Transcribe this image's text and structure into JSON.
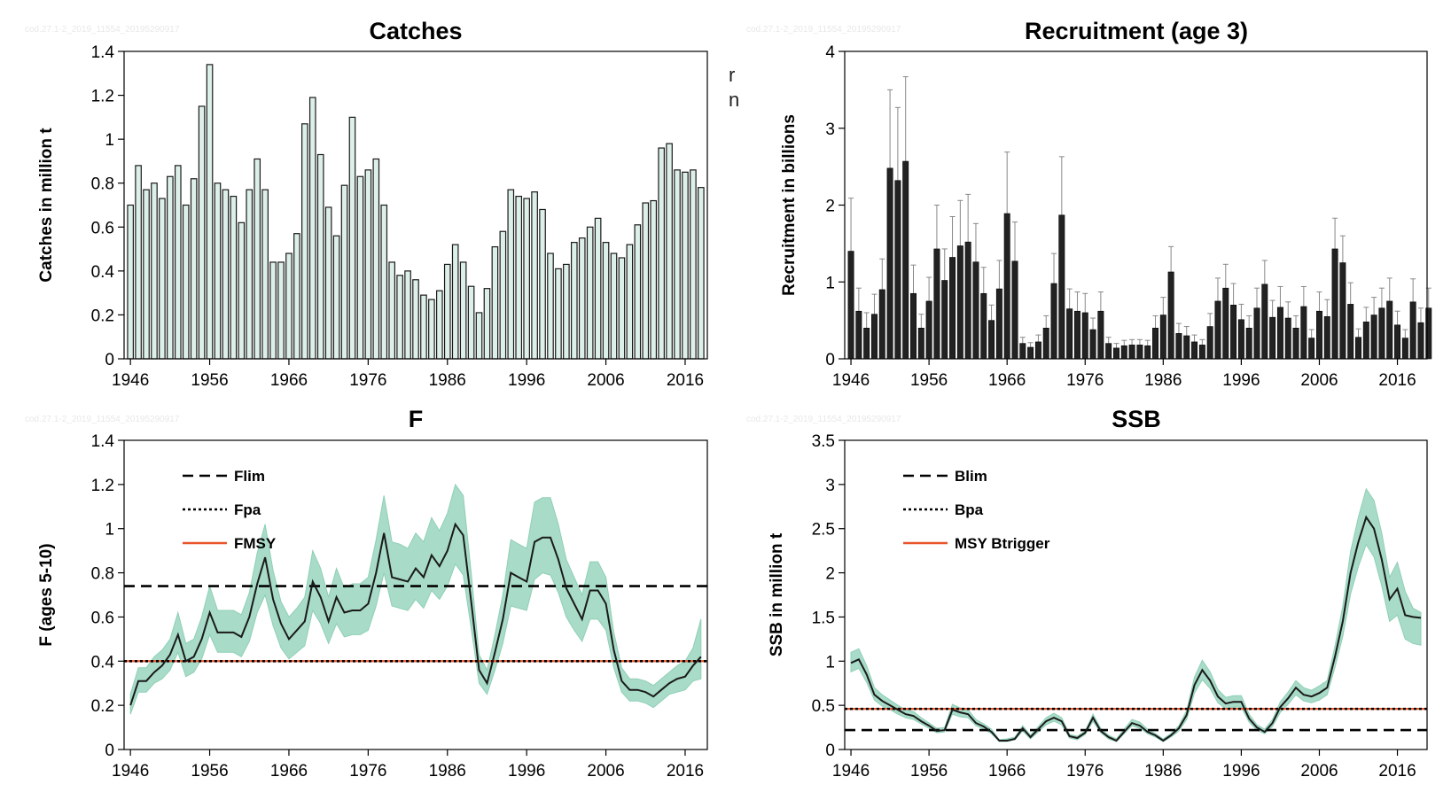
{
  "watermark": "cod.27.1-2_2019_11554_20195290917",
  "fragments": [
    "r",
    "n"
  ],
  "chart_data": [
    {
      "id": "catches",
      "type": "bar",
      "title": "Catches",
      "ylabel": "Catches in million t",
      "xlabel": "",
      "ylim": [
        0,
        1.4
      ],
      "yticks": [
        0,
        0.2,
        0.4,
        0.6,
        0.8,
        1,
        1.2,
        1.4
      ],
      "ytick_labels": [
        "0",
        "0.2",
        "0.4",
        "0.6",
        "0.8",
        "1",
        "1.2",
        "1.4"
      ],
      "xticks": [
        1946,
        1956,
        1966,
        1976,
        1986,
        1996,
        2006,
        2016
      ],
      "x_start": 1946,
      "x_end": 2018,
      "bar_color": "#dcefe8",
      "values": [
        0.7,
        0.88,
        0.77,
        0.8,
        0.73,
        0.83,
        0.88,
        0.7,
        0.82,
        1.15,
        1.34,
        0.8,
        0.77,
        0.74,
        0.62,
        0.77,
        0.91,
        0.77,
        0.44,
        0.44,
        0.48,
        0.57,
        1.07,
        1.19,
        0.93,
        0.69,
        0.56,
        0.79,
        1.1,
        0.83,
        0.86,
        0.91,
        0.7,
        0.44,
        0.38,
        0.4,
        0.36,
        0.29,
        0.27,
        0.31,
        0.43,
        0.52,
        0.44,
        0.33,
        0.21,
        0.32,
        0.51,
        0.58,
        0.77,
        0.74,
        0.73,
        0.76,
        0.68,
        0.48,
        0.41,
        0.43,
        0.53,
        0.55,
        0.6,
        0.64,
        0.53,
        0.48,
        0.46,
        0.52,
        0.61,
        0.71,
        0.72,
        0.96,
        0.98,
        0.86,
        0.85,
        0.86,
        0.78
      ]
    },
    {
      "id": "recruitment",
      "type": "bar",
      "title": "Recruitment (age 3)",
      "ylabel": "Recruitment in billions",
      "xlabel": "",
      "ylim": [
        0,
        4
      ],
      "yticks": [
        0,
        1,
        2,
        3,
        4
      ],
      "ytick_labels": [
        "0",
        "1",
        "2",
        "3",
        "4"
      ],
      "xticks": [
        1946,
        1956,
        1966,
        1976,
        1986,
        1996,
        2006,
        2016
      ],
      "x_start": 1946,
      "x_end": 2019,
      "bar_color": "#222222",
      "values": [
        1.4,
        0.62,
        0.4,
        0.58,
        0.9,
        2.48,
        2.32,
        2.57,
        0.85,
        0.4,
        0.75,
        1.43,
        1.02,
        1.32,
        1.47,
        1.52,
        1.26,
        0.85,
        0.5,
        0.91,
        1.89,
        1.27,
        0.2,
        0.15,
        0.22,
        0.4,
        0.98,
        1.87,
        0.65,
        0.62,
        0.6,
        0.38,
        0.62,
        0.2,
        0.14,
        0.17,
        0.18,
        0.18,
        0.17,
        0.4,
        0.57,
        1.13,
        0.33,
        0.3,
        0.22,
        0.18,
        0.42,
        0.75,
        0.92,
        0.7,
        0.51,
        0.4,
        0.66,
        0.97,
        0.54,
        0.67,
        0.53,
        0.4,
        0.68,
        0.27,
        0.62,
        0.55,
        1.43,
        1.25,
        0.71,
        0.28,
        0.48,
        0.57,
        0.66,
        0.75,
        0.44,
        0.27,
        0.74,
        0.47,
        0.66
      ],
      "upper": [
        2.09,
        0.92,
        0.6,
        0.84,
        1.3,
        3.5,
        3.27,
        3.67,
        1.22,
        0.58,
        1.06,
        2.0,
        1.43,
        1.85,
        2.06,
        2.14,
        1.76,
        1.19,
        0.7,
        1.28,
        2.69,
        1.78,
        0.28,
        0.21,
        0.31,
        0.56,
        1.37,
        2.63,
        0.91,
        0.87,
        0.85,
        0.53,
        0.87,
        0.28,
        0.2,
        0.24,
        0.25,
        0.25,
        0.24,
        0.56,
        0.8,
        1.46,
        0.46,
        0.42,
        0.31,
        0.25,
        0.59,
        1.05,
        1.23,
        0.98,
        0.71,
        0.56,
        0.92,
        1.28,
        0.76,
        0.94,
        0.74,
        0.56,
        0.94,
        0.38,
        0.87,
        0.77,
        1.83,
        1.6,
        0.99,
        0.39,
        0.67,
        0.8,
        0.92,
        1.05,
        0.62,
        0.38,
        1.04,
        0.66,
        0.92
      ]
    },
    {
      "id": "f",
      "type": "line",
      "title": "F",
      "ylabel": "F (ages 5-10)",
      "xlabel": "",
      "ylim": [
        0,
        1.4
      ],
      "yticks": [
        0,
        0.2,
        0.4,
        0.6,
        0.8,
        1,
        1.2,
        1.4
      ],
      "ytick_labels": [
        "0",
        "0.2",
        "0.4",
        "0.6",
        "0.8",
        "1",
        "1.2",
        "1.4"
      ],
      "xticks": [
        1946,
        1956,
        1966,
        1976,
        1986,
        1996,
        2006,
        2016
      ],
      "x_start": 1946,
      "x_end": 2018,
      "line_color": "#1a1a1a",
      "band_color": "#a8dcc8",
      "x": [
        1946,
        1947,
        1948,
        1949,
        1950,
        1951,
        1952,
        1953,
        1954,
        1955,
        1956,
        1957,
        1958,
        1959,
        1960,
        1961,
        1962,
        1963,
        1964,
        1965,
        1966,
        1967,
        1968,
        1969,
        1970,
        1971,
        1972,
        1973,
        1974,
        1975,
        1976,
        1977,
        1978,
        1979,
        1980,
        1981,
        1982,
        1983,
        1984,
        1985,
        1986,
        1987,
        1988,
        1989,
        1990,
        1991,
        1992,
        1993,
        1994,
        1995,
        1996,
        1997,
        1998,
        1999,
        2000,
        2001,
        2002,
        2003,
        2004,
        2005,
        2006,
        2007,
        2008,
        2009,
        2010,
        2011,
        2012,
        2013,
        2014,
        2015,
        2016,
        2017,
        2018
      ],
      "values": [
        0.2,
        0.31,
        0.31,
        0.35,
        0.38,
        0.43,
        0.52,
        0.4,
        0.42,
        0.5,
        0.62,
        0.53,
        0.53,
        0.53,
        0.51,
        0.6,
        0.75,
        0.87,
        0.68,
        0.57,
        0.5,
        0.54,
        0.58,
        0.76,
        0.69,
        0.58,
        0.69,
        0.62,
        0.63,
        0.63,
        0.66,
        0.8,
        0.98,
        0.78,
        0.77,
        0.76,
        0.82,
        0.78,
        0.88,
        0.83,
        0.9,
        1.02,
        0.97,
        0.67,
        0.36,
        0.3,
        0.44,
        0.59,
        0.8,
        0.78,
        0.76,
        0.94,
        0.96,
        0.96,
        0.86,
        0.73,
        0.66,
        0.59,
        0.72,
        0.72,
        0.66,
        0.45,
        0.31,
        0.27,
        0.27,
        0.26,
        0.24,
        0.27,
        0.3,
        0.32,
        0.33,
        0.38,
        0.42
      ],
      "lower": [
        0.16,
        0.26,
        0.26,
        0.3,
        0.32,
        0.36,
        0.44,
        0.33,
        0.35,
        0.41,
        0.52,
        0.44,
        0.44,
        0.44,
        0.42,
        0.49,
        0.62,
        0.7,
        0.56,
        0.46,
        0.41,
        0.44,
        0.47,
        0.63,
        0.57,
        0.48,
        0.57,
        0.51,
        0.52,
        0.52,
        0.54,
        0.65,
        0.8,
        0.65,
        0.64,
        0.63,
        0.68,
        0.64,
        0.72,
        0.68,
        0.74,
        0.84,
        0.79,
        0.55,
        0.3,
        0.25,
        0.36,
        0.48,
        0.65,
        0.64,
        0.63,
        0.77,
        0.8,
        0.79,
        0.71,
        0.6,
        0.54,
        0.49,
        0.59,
        0.59,
        0.54,
        0.37,
        0.26,
        0.22,
        0.22,
        0.21,
        0.19,
        0.22,
        0.25,
        0.26,
        0.27,
        0.31,
        0.32
      ],
      "upper": [
        0.25,
        0.37,
        0.37,
        0.42,
        0.45,
        0.5,
        0.62,
        0.48,
        0.5,
        0.6,
        0.74,
        0.63,
        0.63,
        0.63,
        0.61,
        0.71,
        0.89,
        1.02,
        0.81,
        0.67,
        0.6,
        0.64,
        0.69,
        0.9,
        0.82,
        0.69,
        0.82,
        0.73,
        0.75,
        0.75,
        0.78,
        0.95,
        1.15,
        0.94,
        0.93,
        0.91,
        0.98,
        0.94,
        1.05,
        0.99,
        1.07,
        1.2,
        1.15,
        0.8,
        0.43,
        0.36,
        0.52,
        0.7,
        0.95,
        0.93,
        0.91,
        1.12,
        1.14,
        1.14,
        1.02,
        0.86,
        0.78,
        0.7,
        0.85,
        0.85,
        0.78,
        0.53,
        0.37,
        0.32,
        0.32,
        0.31,
        0.29,
        0.32,
        0.35,
        0.38,
        0.4,
        0.46,
        0.59
      ],
      "reference_lines": [
        {
          "label": "Flim",
          "value": 0.74,
          "style": "dashed",
          "color": "#000000"
        },
        {
          "label": "Fpa",
          "value": 0.4,
          "style": "dotted",
          "color": "#000000"
        },
        {
          "label": "FMSY",
          "value": 0.4,
          "style": "solid",
          "color": "#e8552a"
        }
      ],
      "legend_position": "top-left"
    },
    {
      "id": "ssb",
      "type": "line",
      "title": "SSB",
      "ylabel": "SSB in million t",
      "xlabel": "",
      "ylim": [
        0,
        3.5
      ],
      "yticks": [
        0,
        0.5,
        1,
        1.5,
        2,
        2.5,
        3,
        3.5
      ],
      "ytick_labels": [
        "0",
        "0.5",
        "1",
        "1.5",
        "2",
        "2.5",
        "3",
        "3.5"
      ],
      "xticks": [
        1946,
        1956,
        1966,
        1976,
        1986,
        1996,
        2006,
        2016
      ],
      "x_start": 1946,
      "x_end": 2019,
      "line_color": "#1a1a1a",
      "band_color": "#a8dcc8",
      "x": [
        1946,
        1947,
        1948,
        1949,
        1950,
        1951,
        1952,
        1953,
        1954,
        1955,
        1956,
        1957,
        1958,
        1959,
        1960,
        1961,
        1962,
        1963,
        1964,
        1965,
        1966,
        1967,
        1968,
        1969,
        1970,
        1971,
        1972,
        1973,
        1974,
        1975,
        1976,
        1977,
        1978,
        1979,
        1980,
        1981,
        1982,
        1983,
        1984,
        1985,
        1986,
        1987,
        1988,
        1989,
        1990,
        1991,
        1992,
        1993,
        1994,
        1995,
        1996,
        1997,
        1998,
        1999,
        2000,
        2001,
        2002,
        2003,
        2004,
        2005,
        2006,
        2007,
        2008,
        2009,
        2010,
        2011,
        2012,
        2013,
        2014,
        2015,
        2016,
        2017,
        2018,
        2019
      ],
      "values": [
        0.98,
        1.02,
        0.85,
        0.62,
        0.55,
        0.5,
        0.45,
        0.4,
        0.38,
        0.32,
        0.27,
        0.21,
        0.22,
        0.45,
        0.42,
        0.4,
        0.3,
        0.26,
        0.2,
        0.1,
        0.1,
        0.12,
        0.24,
        0.14,
        0.23,
        0.32,
        0.36,
        0.32,
        0.15,
        0.13,
        0.19,
        0.36,
        0.21,
        0.14,
        0.1,
        0.2,
        0.3,
        0.27,
        0.2,
        0.16,
        0.1,
        0.16,
        0.24,
        0.39,
        0.73,
        0.9,
        0.78,
        0.6,
        0.52,
        0.54,
        0.54,
        0.35,
        0.25,
        0.2,
        0.3,
        0.48,
        0.58,
        0.7,
        0.62,
        0.6,
        0.64,
        0.7,
        1.05,
        1.45,
        2.0,
        2.35,
        2.63,
        2.5,
        2.15,
        1.7,
        1.82,
        1.52,
        1.5,
        1.49
      ],
      "lower": [
        0.88,
        0.92,
        0.76,
        0.56,
        0.49,
        0.45,
        0.4,
        0.36,
        0.34,
        0.29,
        0.24,
        0.19,
        0.2,
        0.4,
        0.37,
        0.36,
        0.27,
        0.23,
        0.18,
        0.09,
        0.09,
        0.11,
        0.21,
        0.12,
        0.2,
        0.28,
        0.32,
        0.28,
        0.13,
        0.11,
        0.17,
        0.32,
        0.19,
        0.12,
        0.09,
        0.18,
        0.27,
        0.24,
        0.18,
        0.14,
        0.09,
        0.14,
        0.21,
        0.34,
        0.64,
        0.79,
        0.69,
        0.53,
        0.46,
        0.48,
        0.48,
        0.31,
        0.22,
        0.18,
        0.26,
        0.42,
        0.51,
        0.62,
        0.55,
        0.53,
        0.56,
        0.62,
        0.93,
        1.28,
        1.76,
        2.07,
        2.32,
        2.18,
        1.85,
        1.45,
        1.52,
        1.25,
        1.2,
        1.18
      ],
      "upper": [
        1.1,
        1.14,
        0.95,
        0.7,
        0.62,
        0.56,
        0.5,
        0.45,
        0.43,
        0.36,
        0.3,
        0.24,
        0.25,
        0.51,
        0.47,
        0.45,
        0.34,
        0.29,
        0.23,
        0.11,
        0.12,
        0.14,
        0.27,
        0.16,
        0.26,
        0.36,
        0.41,
        0.36,
        0.17,
        0.15,
        0.21,
        0.4,
        0.24,
        0.16,
        0.12,
        0.23,
        0.34,
        0.31,
        0.23,
        0.18,
        0.12,
        0.18,
        0.27,
        0.44,
        0.82,
        1.01,
        0.88,
        0.68,
        0.59,
        0.61,
        0.61,
        0.4,
        0.28,
        0.23,
        0.34,
        0.54,
        0.65,
        0.78,
        0.7,
        0.67,
        0.72,
        0.78,
        1.17,
        1.62,
        2.24,
        2.63,
        2.95,
        2.82,
        2.45,
        1.95,
        2.12,
        1.79,
        1.6,
        1.55
      ],
      "reference_lines": [
        {
          "label": "Blim",
          "value": 0.22,
          "style": "dashed",
          "color": "#000000"
        },
        {
          "label": "Bpa",
          "value": 0.46,
          "style": "dotted",
          "color": "#000000"
        },
        {
          "label": "MSY Btrigger",
          "value": 0.46,
          "style": "solid",
          "color": "#e8552a"
        }
      ],
      "legend_position": "top-left"
    }
  ]
}
